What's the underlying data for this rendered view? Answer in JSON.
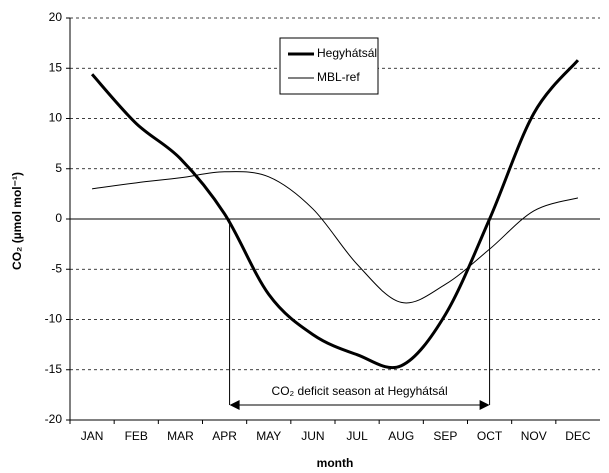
{
  "chart_data": {
    "type": "line",
    "y_label": "CO₂ (µmol mol⁻¹)",
    "x_label": "month",
    "categories": [
      "JAN",
      "FEB",
      "MAR",
      "APR",
      "MAY",
      "JUN",
      "JUL",
      "AUG",
      "SEP",
      "OCT",
      "NOV",
      "DEC"
    ],
    "series": [
      {
        "name": "Hegyhátsál",
        "color": "#000000",
        "width": 3,
        "values": [
          14.4,
          9.5,
          6.0,
          0.5,
          -7.5,
          -11.5,
          -13.5,
          -14.6,
          -9.5,
          0.0,
          10.5,
          15.8
        ]
      },
      {
        "name": "MBL-ref",
        "color": "#000000",
        "width": 1,
        "values": [
          3.0,
          3.6,
          4.1,
          4.7,
          4.2,
          1.0,
          -4.5,
          -8.3,
          -6.5,
          -3.0,
          0.8,
          2.1
        ]
      }
    ],
    "ylim": [
      -20,
      20
    ],
    "yticks": [
      -20,
      -15,
      -10,
      -5,
      0,
      5,
      10,
      15,
      20
    ],
    "grid": true,
    "annotation": "CO₂ deficit season at Hegyhátsál",
    "legend": "top-center"
  }
}
